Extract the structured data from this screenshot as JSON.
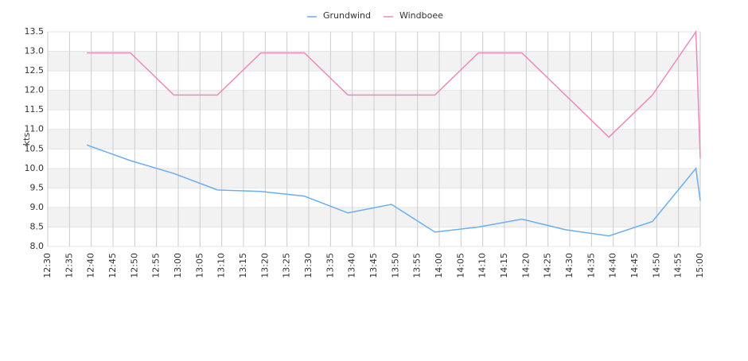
{
  "chart_data": {
    "type": "line",
    "y_label": "kts",
    "x": [
      "12:39",
      "12:49",
      "12:59",
      "13:09",
      "13:19",
      "13:29",
      "13:39",
      "13:49",
      "13:59",
      "14:09",
      "14:19",
      "14:29",
      "14:39",
      "14:49",
      "14:59",
      "15:00"
    ],
    "series": [
      {
        "name": "Grundwind",
        "color": "#6aaeef",
        "values": [
          10.6,
          10.2,
          9.87,
          9.45,
          9.41,
          9.29,
          8.86,
          9.08,
          8.37,
          8.5,
          8.7,
          8.43,
          8.27,
          8.64,
          10.0,
          9.17
        ]
      },
      {
        "name": "Windboee",
        "color": "#ee88bb",
        "values": [
          12.96,
          12.96,
          11.88,
          11.88,
          12.96,
          12.96,
          11.88,
          11.88,
          11.88,
          12.96,
          12.96,
          11.88,
          10.8,
          11.88,
          13.5,
          10.26
        ]
      }
    ],
    "xlim": [
      "12:30",
      "15:00"
    ],
    "xticks": [
      "12:30",
      "12:35",
      "12:40",
      "12:45",
      "12:50",
      "12:55",
      "13:00",
      "13:05",
      "13:10",
      "13:15",
      "13:20",
      "13:25",
      "13:30",
      "13:35",
      "13:40",
      "13:45",
      "13:50",
      "13:55",
      "14:00",
      "14:05",
      "14:10",
      "14:15",
      "14:20",
      "14:25",
      "14:30",
      "14:35",
      "14:40",
      "14:45",
      "14:50",
      "14:55",
      "15:00"
    ],
    "ylim": [
      8,
      13.5
    ],
    "yticks": [
      {
        "value": 8,
        "label": "8.0"
      },
      8.5,
      {
        "value": 9,
        "label": "9.0"
      },
      9.5,
      {
        "value": 10,
        "label": "10.0"
      },
      10.5,
      {
        "value": 11,
        "label": "11.0"
      },
      11.5,
      {
        "value": 12,
        "label": "12.0"
      },
      12.5,
      {
        "value": 13,
        "label": "13.0"
      },
      13.5
    ],
    "grid": true,
    "legend": "top"
  }
}
